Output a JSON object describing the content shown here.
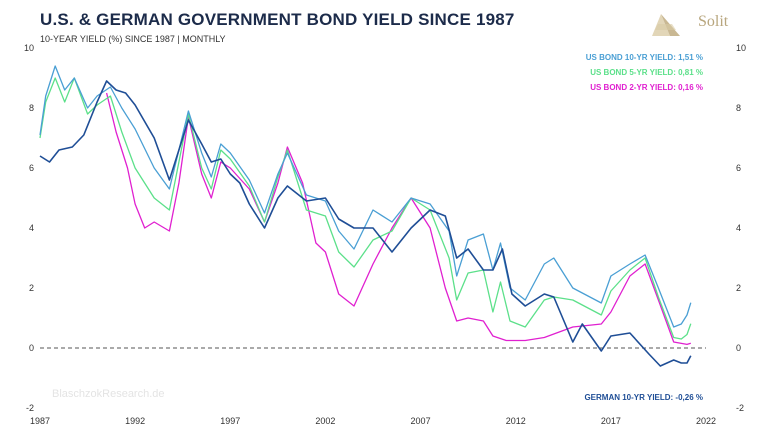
{
  "header": {
    "title": "U.S. & GERMAN GOVERNMENT BOND YIELD SINCE 1987",
    "subtitle": "10-YEAR YIELD (%) SINCE 1987 | MONTHLY",
    "logo_text": "Solit",
    "watermark": "BlaschzokResearch.de"
  },
  "colors": {
    "us10": "#4a9fd4",
    "us5": "#5ce08a",
    "us2": "#e020d0",
    "de10": "#1f4e96",
    "zero_line": "#555555",
    "logo": "#c9b893"
  },
  "chart_data": {
    "type": "line",
    "title": "U.S. & GERMAN GOVERNMENT BOND YIELD SINCE 1987",
    "subtitle": "10-YEAR YIELD (%) SINCE 1987 | MONTHLY",
    "xlim": [
      1987,
      2022
    ],
    "ylim": [
      -2,
      10
    ],
    "x_ticks": [
      "1987",
      "1992",
      "1997",
      "2002",
      "2007",
      "2012",
      "2017",
      "2022"
    ],
    "y_ticks": [
      "-2",
      "0",
      "2",
      "4",
      "6",
      "8",
      "10"
    ],
    "reference_line": {
      "y": 0,
      "style": "dashed"
    },
    "legend_position": "top-right",
    "series": [
      {
        "name": "US BOND 10-YR YIELD",
        "label": "US BOND 10-YR YIELD: 1,51 %",
        "color": "#4a9fd4",
        "points": [
          [
            1987,
            7.1
          ],
          [
            1987.3,
            8.4
          ],
          [
            1987.8,
            9.4
          ],
          [
            1988.3,
            8.6
          ],
          [
            1988.8,
            9.0
          ],
          [
            1989.5,
            8.0
          ],
          [
            1990,
            8.4
          ],
          [
            1990.7,
            8.7
          ],
          [
            1991.3,
            8.0
          ],
          [
            1992,
            7.3
          ],
          [
            1993,
            6.0
          ],
          [
            1993.8,
            5.3
          ],
          [
            1994.8,
            7.9
          ],
          [
            1995.5,
            6.5
          ],
          [
            1996,
            5.7
          ],
          [
            1996.5,
            6.8
          ],
          [
            1997,
            6.5
          ],
          [
            1998,
            5.6
          ],
          [
            1998.8,
            4.5
          ],
          [
            1999.5,
            5.8
          ],
          [
            2000,
            6.5
          ],
          [
            2001,
            5.1
          ],
          [
            2002,
            4.9
          ],
          [
            2002.7,
            3.9
          ],
          [
            2003.5,
            3.3
          ],
          [
            2004.5,
            4.6
          ],
          [
            2005.5,
            4.2
          ],
          [
            2006.5,
            5.0
          ],
          [
            2007.5,
            4.8
          ],
          [
            2008.5,
            3.9
          ],
          [
            2008.9,
            2.4
          ],
          [
            2009.5,
            3.6
          ],
          [
            2010.3,
            3.8
          ],
          [
            2010.8,
            2.6
          ],
          [
            2011.2,
            3.5
          ],
          [
            2011.7,
            2.0
          ],
          [
            2012.5,
            1.6
          ],
          [
            2013.5,
            2.8
          ],
          [
            2014,
            3.0
          ],
          [
            2015,
            2.0
          ],
          [
            2016.5,
            1.5
          ],
          [
            2017,
            2.4
          ],
          [
            2018,
            2.8
          ],
          [
            2018.8,
            3.1
          ],
          [
            2019.5,
            2.0
          ],
          [
            2020.3,
            0.7
          ],
          [
            2020.7,
            0.8
          ],
          [
            2021,
            1.1
          ],
          [
            2021.2,
            1.51
          ]
        ]
      },
      {
        "name": "US BOND 5-YR YIELD",
        "label": "US BOND 5-YR YIELD: 0,81 %",
        "color": "#5ce08a",
        "points": [
          [
            1987,
            7.0
          ],
          [
            1987.3,
            8.2
          ],
          [
            1987.8,
            9.0
          ],
          [
            1988.3,
            8.2
          ],
          [
            1988.8,
            9.0
          ],
          [
            1989.5,
            7.8
          ],
          [
            1990,
            8.1
          ],
          [
            1990.7,
            8.4
          ],
          [
            1991.3,
            7.2
          ],
          [
            1992,
            6.0
          ],
          [
            1993,
            5.0
          ],
          [
            1993.8,
            4.6
          ],
          [
            1994.8,
            7.8
          ],
          [
            1995.5,
            6.0
          ],
          [
            1996,
            5.3
          ],
          [
            1996.5,
            6.6
          ],
          [
            1997,
            6.3
          ],
          [
            1998,
            5.4
          ],
          [
            1998.8,
            4.2
          ],
          [
            1999.5,
            5.7
          ],
          [
            2000,
            6.6
          ],
          [
            2001,
            4.6
          ],
          [
            2002,
            4.4
          ],
          [
            2002.7,
            3.2
          ],
          [
            2003.5,
            2.7
          ],
          [
            2004.5,
            3.6
          ],
          [
            2005.5,
            3.9
          ],
          [
            2006.5,
            5.0
          ],
          [
            2007.5,
            4.6
          ],
          [
            2008.5,
            3.0
          ],
          [
            2008.9,
            1.6
          ],
          [
            2009.5,
            2.5
          ],
          [
            2010.3,
            2.6
          ],
          [
            2010.8,
            1.2
          ],
          [
            2011.2,
            2.2
          ],
          [
            2011.7,
            0.9
          ],
          [
            2012.5,
            0.7
          ],
          [
            2013.5,
            1.6
          ],
          [
            2014,
            1.7
          ],
          [
            2015,
            1.6
          ],
          [
            2016.5,
            1.1
          ],
          [
            2017,
            1.9
          ],
          [
            2018,
            2.6
          ],
          [
            2018.8,
            3.0
          ],
          [
            2019.5,
            1.7
          ],
          [
            2020.3,
            0.35
          ],
          [
            2020.7,
            0.3
          ],
          [
            2021,
            0.45
          ],
          [
            2021.2,
            0.81
          ]
        ]
      },
      {
        "name": "US BOND 2-YR YIELD",
        "label": "US BOND 2-YR YIELD: 0,16 %",
        "color": "#e020d0",
        "points": [
          [
            1990.5,
            8.5
          ],
          [
            1991,
            7.2
          ],
          [
            1991.6,
            6.0
          ],
          [
            1992,
            4.8
          ],
          [
            1992.5,
            4.0
          ],
          [
            1993,
            4.2
          ],
          [
            1993.8,
            3.9
          ],
          [
            1994.3,
            5.5
          ],
          [
            1994.8,
            7.7
          ],
          [
            1995.5,
            5.8
          ],
          [
            1996,
            5.0
          ],
          [
            1996.5,
            6.2
          ],
          [
            1997,
            6.0
          ],
          [
            1998,
            5.3
          ],
          [
            1998.8,
            4.2
          ],
          [
            1999.5,
            5.5
          ],
          [
            2000,
            6.7
          ],
          [
            2000.8,
            5.5
          ],
          [
            2001.5,
            3.5
          ],
          [
            2002,
            3.2
          ],
          [
            2002.7,
            1.8
          ],
          [
            2003.5,
            1.4
          ],
          [
            2004.5,
            2.8
          ],
          [
            2005.5,
            4.0
          ],
          [
            2006.5,
            5.0
          ],
          [
            2007.5,
            4.0
          ],
          [
            2008.3,
            2.0
          ],
          [
            2008.9,
            0.9
          ],
          [
            2009.5,
            1.0
          ],
          [
            2010.3,
            0.9
          ],
          [
            2010.8,
            0.4
          ],
          [
            2011.5,
            0.25
          ],
          [
            2012.5,
            0.25
          ],
          [
            2013.5,
            0.35
          ],
          [
            2015,
            0.7
          ],
          [
            2016.5,
            0.8
          ],
          [
            2017,
            1.2
          ],
          [
            2018,
            2.4
          ],
          [
            2018.8,
            2.8
          ],
          [
            2019.5,
            1.6
          ],
          [
            2020.3,
            0.2
          ],
          [
            2021,
            0.12
          ],
          [
            2021.2,
            0.16
          ]
        ]
      },
      {
        "name": "GERMAN 10-YR YIELD",
        "label": "GERMAN 10-YR YIELD: -0,26 %",
        "color": "#1f4e96",
        "points": [
          [
            1987,
            6.4
          ],
          [
            1987.5,
            6.2
          ],
          [
            1988,
            6.6
          ],
          [
            1988.7,
            6.7
          ],
          [
            1989.3,
            7.1
          ],
          [
            1990,
            8.2
          ],
          [
            1990.5,
            8.9
          ],
          [
            1991,
            8.6
          ],
          [
            1991.5,
            8.5
          ],
          [
            1992,
            8.1
          ],
          [
            1993,
            7.0
          ],
          [
            1993.8,
            5.6
          ],
          [
            1994.8,
            7.6
          ],
          [
            1995.5,
            6.8
          ],
          [
            1996,
            6.2
          ],
          [
            1996.5,
            6.3
          ],
          [
            1997,
            5.8
          ],
          [
            1997.5,
            5.5
          ],
          [
            1998,
            4.8
          ],
          [
            1998.8,
            4.0
          ],
          [
            1999.5,
            5.0
          ],
          [
            2000,
            5.4
          ],
          [
            2001,
            4.9
          ],
          [
            2002,
            5.0
          ],
          [
            2002.7,
            4.3
          ],
          [
            2003.5,
            4.0
          ],
          [
            2004.5,
            4.0
          ],
          [
            2005.5,
            3.2
          ],
          [
            2006.5,
            4.0
          ],
          [
            2007.5,
            4.6
          ],
          [
            2008.3,
            4.4
          ],
          [
            2008.9,
            3.0
          ],
          [
            2009.5,
            3.3
          ],
          [
            2010.3,
            2.6
          ],
          [
            2010.8,
            2.6
          ],
          [
            2011.3,
            3.3
          ],
          [
            2011.8,
            1.8
          ],
          [
            2012.5,
            1.4
          ],
          [
            2013.5,
            1.8
          ],
          [
            2014,
            1.7
          ],
          [
            2015,
            0.2
          ],
          [
            2015.5,
            0.8
          ],
          [
            2016.5,
            -0.1
          ],
          [
            2017,
            0.4
          ],
          [
            2018,
            0.5
          ],
          [
            2019,
            -0.2
          ],
          [
            2019.6,
            -0.6
          ],
          [
            2020.3,
            -0.4
          ],
          [
            2020.7,
            -0.5
          ],
          [
            2021,
            -0.5
          ],
          [
            2021.2,
            -0.26
          ]
        ]
      }
    ]
  }
}
